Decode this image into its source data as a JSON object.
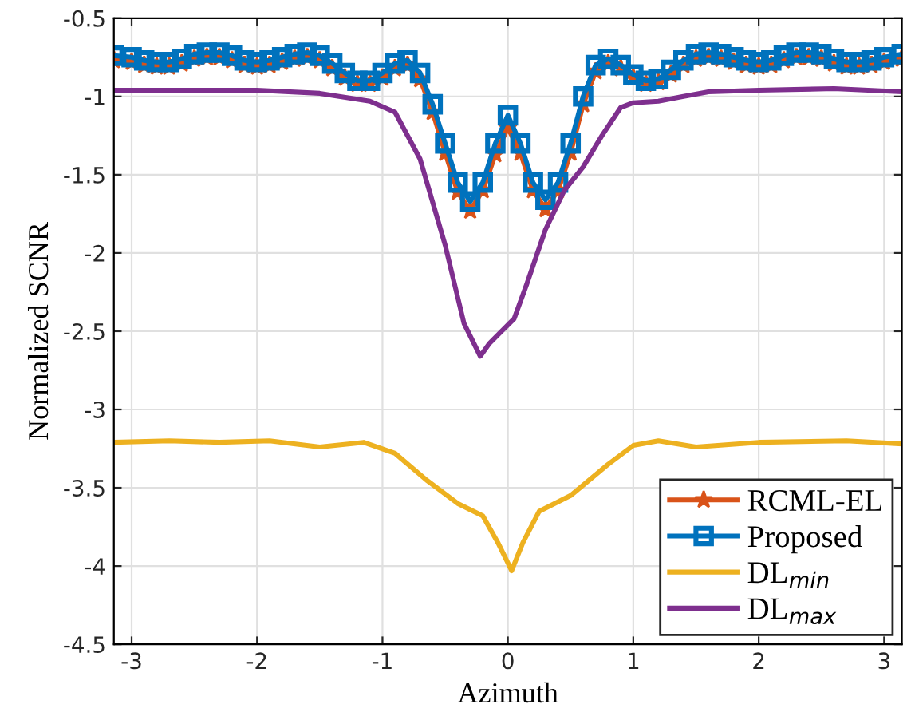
{
  "chart_data": {
    "type": "line",
    "xlabel": "Azimuth",
    "ylabel": "Normalized SCNR",
    "xlim": [
      -3.14159,
      3.14159
    ],
    "ylim": [
      -4.5,
      -0.5
    ],
    "xticks": [
      -3,
      -2,
      -1,
      0,
      1,
      2,
      3
    ],
    "yticks": [
      -4.5,
      -4,
      -3.5,
      -3,
      -2.5,
      -2,
      -1.5,
      -1,
      -0.5
    ],
    "grid": true,
    "legend": "bottom right",
    "line_style": "solid",
    "series": [
      {
        "name": "RCML-EL",
        "color": "#d95319",
        "marker": "star",
        "x": [
          -3.14,
          -3.0,
          -2.9,
          -2.8,
          -2.7,
          -2.6,
          -2.5,
          -2.4,
          -2.3,
          -2.2,
          -2.1,
          -2.0,
          -1.9,
          -1.8,
          -1.7,
          -1.6,
          -1.5,
          -1.4,
          -1.3,
          -1.2,
          -1.1,
          -1.0,
          -0.9,
          -0.8,
          -0.7,
          -0.6,
          -0.5,
          -0.4,
          -0.3,
          -0.2,
          -0.1,
          0.0,
          0.1,
          0.2,
          0.3,
          0.4,
          0.5,
          0.6,
          0.7,
          0.8,
          0.9,
          1.0,
          1.1,
          1.2,
          1.3,
          1.4,
          1.5,
          1.6,
          1.7,
          1.8,
          1.9,
          2.0,
          2.1,
          2.2,
          2.3,
          2.4,
          2.5,
          2.6,
          2.7,
          2.8,
          2.9,
          3.0,
          3.14
        ],
        "values": [
          -0.77,
          -0.78,
          -0.8,
          -0.81,
          -0.81,
          -0.79,
          -0.76,
          -0.75,
          -0.75,
          -0.77,
          -0.8,
          -0.81,
          -0.8,
          -0.78,
          -0.76,
          -0.75,
          -0.77,
          -0.82,
          -0.88,
          -0.92,
          -0.92,
          -0.88,
          -0.82,
          -0.8,
          -0.89,
          -1.1,
          -1.36,
          -1.61,
          -1.73,
          -1.6,
          -1.37,
          -1.2,
          -1.36,
          -1.6,
          -1.72,
          -1.6,
          -1.36,
          -1.05,
          -0.84,
          -0.79,
          -0.82,
          -0.88,
          -0.92,
          -0.91,
          -0.86,
          -0.8,
          -0.76,
          -0.75,
          -0.76,
          -0.78,
          -0.8,
          -0.81,
          -0.8,
          -0.77,
          -0.75,
          -0.75,
          -0.76,
          -0.79,
          -0.81,
          -0.81,
          -0.8,
          -0.78,
          -0.76
        ]
      },
      {
        "name": "Proposed",
        "color": "#0072bd",
        "marker": "square",
        "x": [
          -3.14,
          -3.0,
          -2.9,
          -2.8,
          -2.7,
          -2.6,
          -2.5,
          -2.4,
          -2.3,
          -2.2,
          -2.1,
          -2.0,
          -1.9,
          -1.8,
          -1.7,
          -1.6,
          -1.5,
          -1.4,
          -1.3,
          -1.2,
          -1.1,
          -1.0,
          -0.9,
          -0.8,
          -0.7,
          -0.6,
          -0.5,
          -0.4,
          -0.3,
          -0.2,
          -0.1,
          0.0,
          0.1,
          0.2,
          0.3,
          0.4,
          0.5,
          0.6,
          0.7,
          0.8,
          0.9,
          1.0,
          1.1,
          1.2,
          1.3,
          1.4,
          1.5,
          1.6,
          1.7,
          1.8,
          1.9,
          2.0,
          2.1,
          2.2,
          2.3,
          2.4,
          2.5,
          2.6,
          2.7,
          2.8,
          2.9,
          3.0,
          3.14
        ],
        "values": [
          -0.74,
          -0.75,
          -0.77,
          -0.78,
          -0.78,
          -0.76,
          -0.73,
          -0.72,
          -0.72,
          -0.74,
          -0.77,
          -0.78,
          -0.77,
          -0.75,
          -0.73,
          -0.72,
          -0.74,
          -0.79,
          -0.85,
          -0.9,
          -0.9,
          -0.85,
          -0.79,
          -0.77,
          -0.85,
          -1.05,
          -1.3,
          -1.55,
          -1.67,
          -1.55,
          -1.3,
          -1.12,
          -1.3,
          -1.55,
          -1.66,
          -1.55,
          -1.3,
          -1.0,
          -0.8,
          -0.76,
          -0.8,
          -0.86,
          -0.9,
          -0.89,
          -0.83,
          -0.77,
          -0.73,
          -0.72,
          -0.73,
          -0.75,
          -0.77,
          -0.78,
          -0.77,
          -0.74,
          -0.72,
          -0.72,
          -0.73,
          -0.76,
          -0.78,
          -0.78,
          -0.77,
          -0.75,
          -0.73
        ]
      },
      {
        "name": "DL$_{min}$",
        "color": "#edb120",
        "marker": "none",
        "x": [
          -3.14,
          -2.7,
          -2.3,
          -1.9,
          -1.5,
          -1.15,
          -0.9,
          -0.65,
          -0.4,
          -0.2,
          -0.08,
          0.03,
          0.12,
          0.25,
          0.5,
          0.8,
          1.0,
          1.2,
          1.5,
          2.0,
          2.7,
          3.14
        ],
        "values": [
          -3.21,
          -3.2,
          -3.21,
          -3.2,
          -3.24,
          -3.21,
          -3.28,
          -3.45,
          -3.6,
          -3.68,
          -3.85,
          -4.03,
          -3.85,
          -3.65,
          -3.55,
          -3.35,
          -3.23,
          -3.2,
          -3.24,
          -3.21,
          -3.2,
          -3.22
        ]
      },
      {
        "name": "DL$_{max}$",
        "color": "#7e2f8e",
        "marker": "none",
        "x": [
          -3.14,
          -2.5,
          -2.0,
          -1.5,
          -1.1,
          -0.9,
          -0.7,
          -0.5,
          -0.35,
          -0.22,
          -0.15,
          -0.05,
          0.05,
          0.15,
          0.3,
          0.45,
          0.6,
          0.75,
          0.9,
          1.0,
          1.2,
          1.4,
          1.6,
          2.0,
          2.6,
          3.14
        ],
        "values": [
          -0.96,
          -0.96,
          -0.96,
          -0.98,
          -1.03,
          -1.1,
          -1.4,
          -1.95,
          -2.45,
          -2.66,
          -2.58,
          -2.5,
          -2.42,
          -2.2,
          -1.85,
          -1.6,
          -1.45,
          -1.25,
          -1.07,
          -1.04,
          -1.03,
          -1.0,
          -0.97,
          -0.96,
          -0.95,
          -0.97
        ]
      }
    ]
  }
}
